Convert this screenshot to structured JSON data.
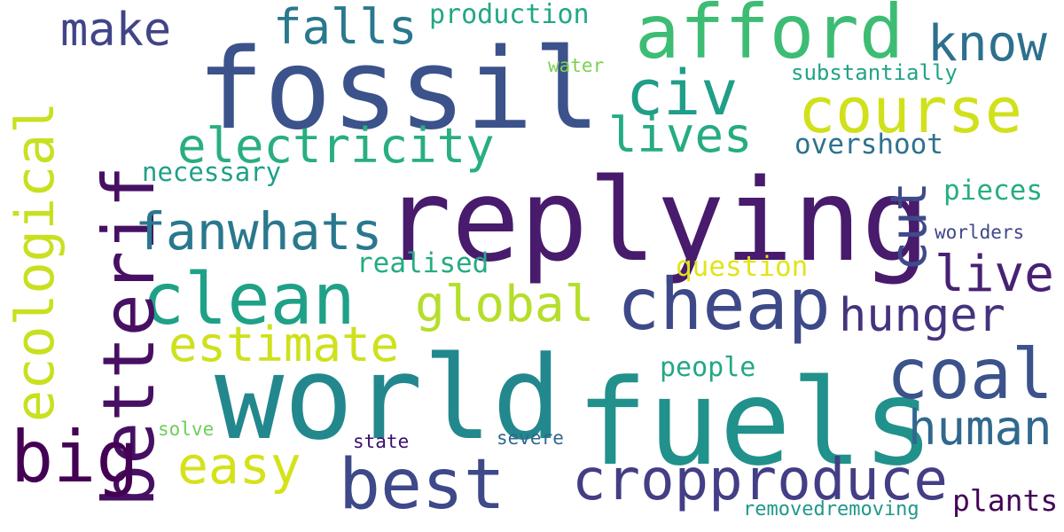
{
  "words": [
    {
      "text": "replying",
      "color": "#481b6d"
    },
    {
      "text": "fossil",
      "color": "#3b528b"
    },
    {
      "text": "world",
      "color": "#23888e"
    },
    {
      "text": "fuels",
      "color": "#21918c"
    },
    {
      "text": "afford",
      "color": "#3dbc74"
    },
    {
      "text": "course",
      "color": "#d0e11c"
    },
    {
      "text": "cheap",
      "color": "#3e4989"
    },
    {
      "text": "clean",
      "color": "#1fa187"
    },
    {
      "text": "coal",
      "color": "#3b528b"
    },
    {
      "text": "best",
      "color": "#3e4989"
    },
    {
      "text": "cropproduce",
      "color": "#433e85"
    },
    {
      "text": "betterif",
      "color": "#471063"
    },
    {
      "text": "big",
      "color": "#440154"
    },
    {
      "text": "ecological",
      "color": "#c8e020"
    },
    {
      "text": "fanwhats",
      "color": "#2a788e"
    },
    {
      "text": "electricity",
      "color": "#29af7f"
    },
    {
      "text": "civ",
      "color": "#1f9e89"
    },
    {
      "text": "make",
      "color": "#414487"
    },
    {
      "text": "falls",
      "color": "#2a788e"
    },
    {
      "text": "know",
      "color": "#2d708e"
    },
    {
      "text": "lives",
      "color": "#25ac82"
    },
    {
      "text": "estimate",
      "color": "#cde11d"
    },
    {
      "text": "easy",
      "color": "#d5e21a"
    },
    {
      "text": "global",
      "color": "#b5de2b"
    },
    {
      "text": "hunger",
      "color": "#46337e"
    },
    {
      "text": "human",
      "color": "#31688e"
    },
    {
      "text": "cut",
      "color": "#3e4a89"
    },
    {
      "text": "live",
      "color": "#482173"
    },
    {
      "text": "production",
      "color": "#22a785"
    },
    {
      "text": "overshoot",
      "color": "#2c728e"
    },
    {
      "text": "substantially",
      "color": "#20a386"
    },
    {
      "text": "water",
      "color": "#7ad151"
    },
    {
      "text": "necessary",
      "color": "#1fa088"
    },
    {
      "text": "realised",
      "color": "#25ab82"
    },
    {
      "text": "question",
      "color": "#e2e418"
    },
    {
      "text": "pieces",
      "color": "#27ad81"
    },
    {
      "text": "worlders",
      "color": "#3f4788"
    },
    {
      "text": "people",
      "color": "#22a884"
    },
    {
      "text": "solve",
      "color": "#6ece58"
    },
    {
      "text": "state",
      "color": "#3b0f70"
    },
    {
      "text": "severe",
      "color": "#31688e"
    },
    {
      "text": "plants",
      "color": "#450457"
    },
    {
      "text": "removedremoving",
      "color": "#1f988b"
    }
  ]
}
